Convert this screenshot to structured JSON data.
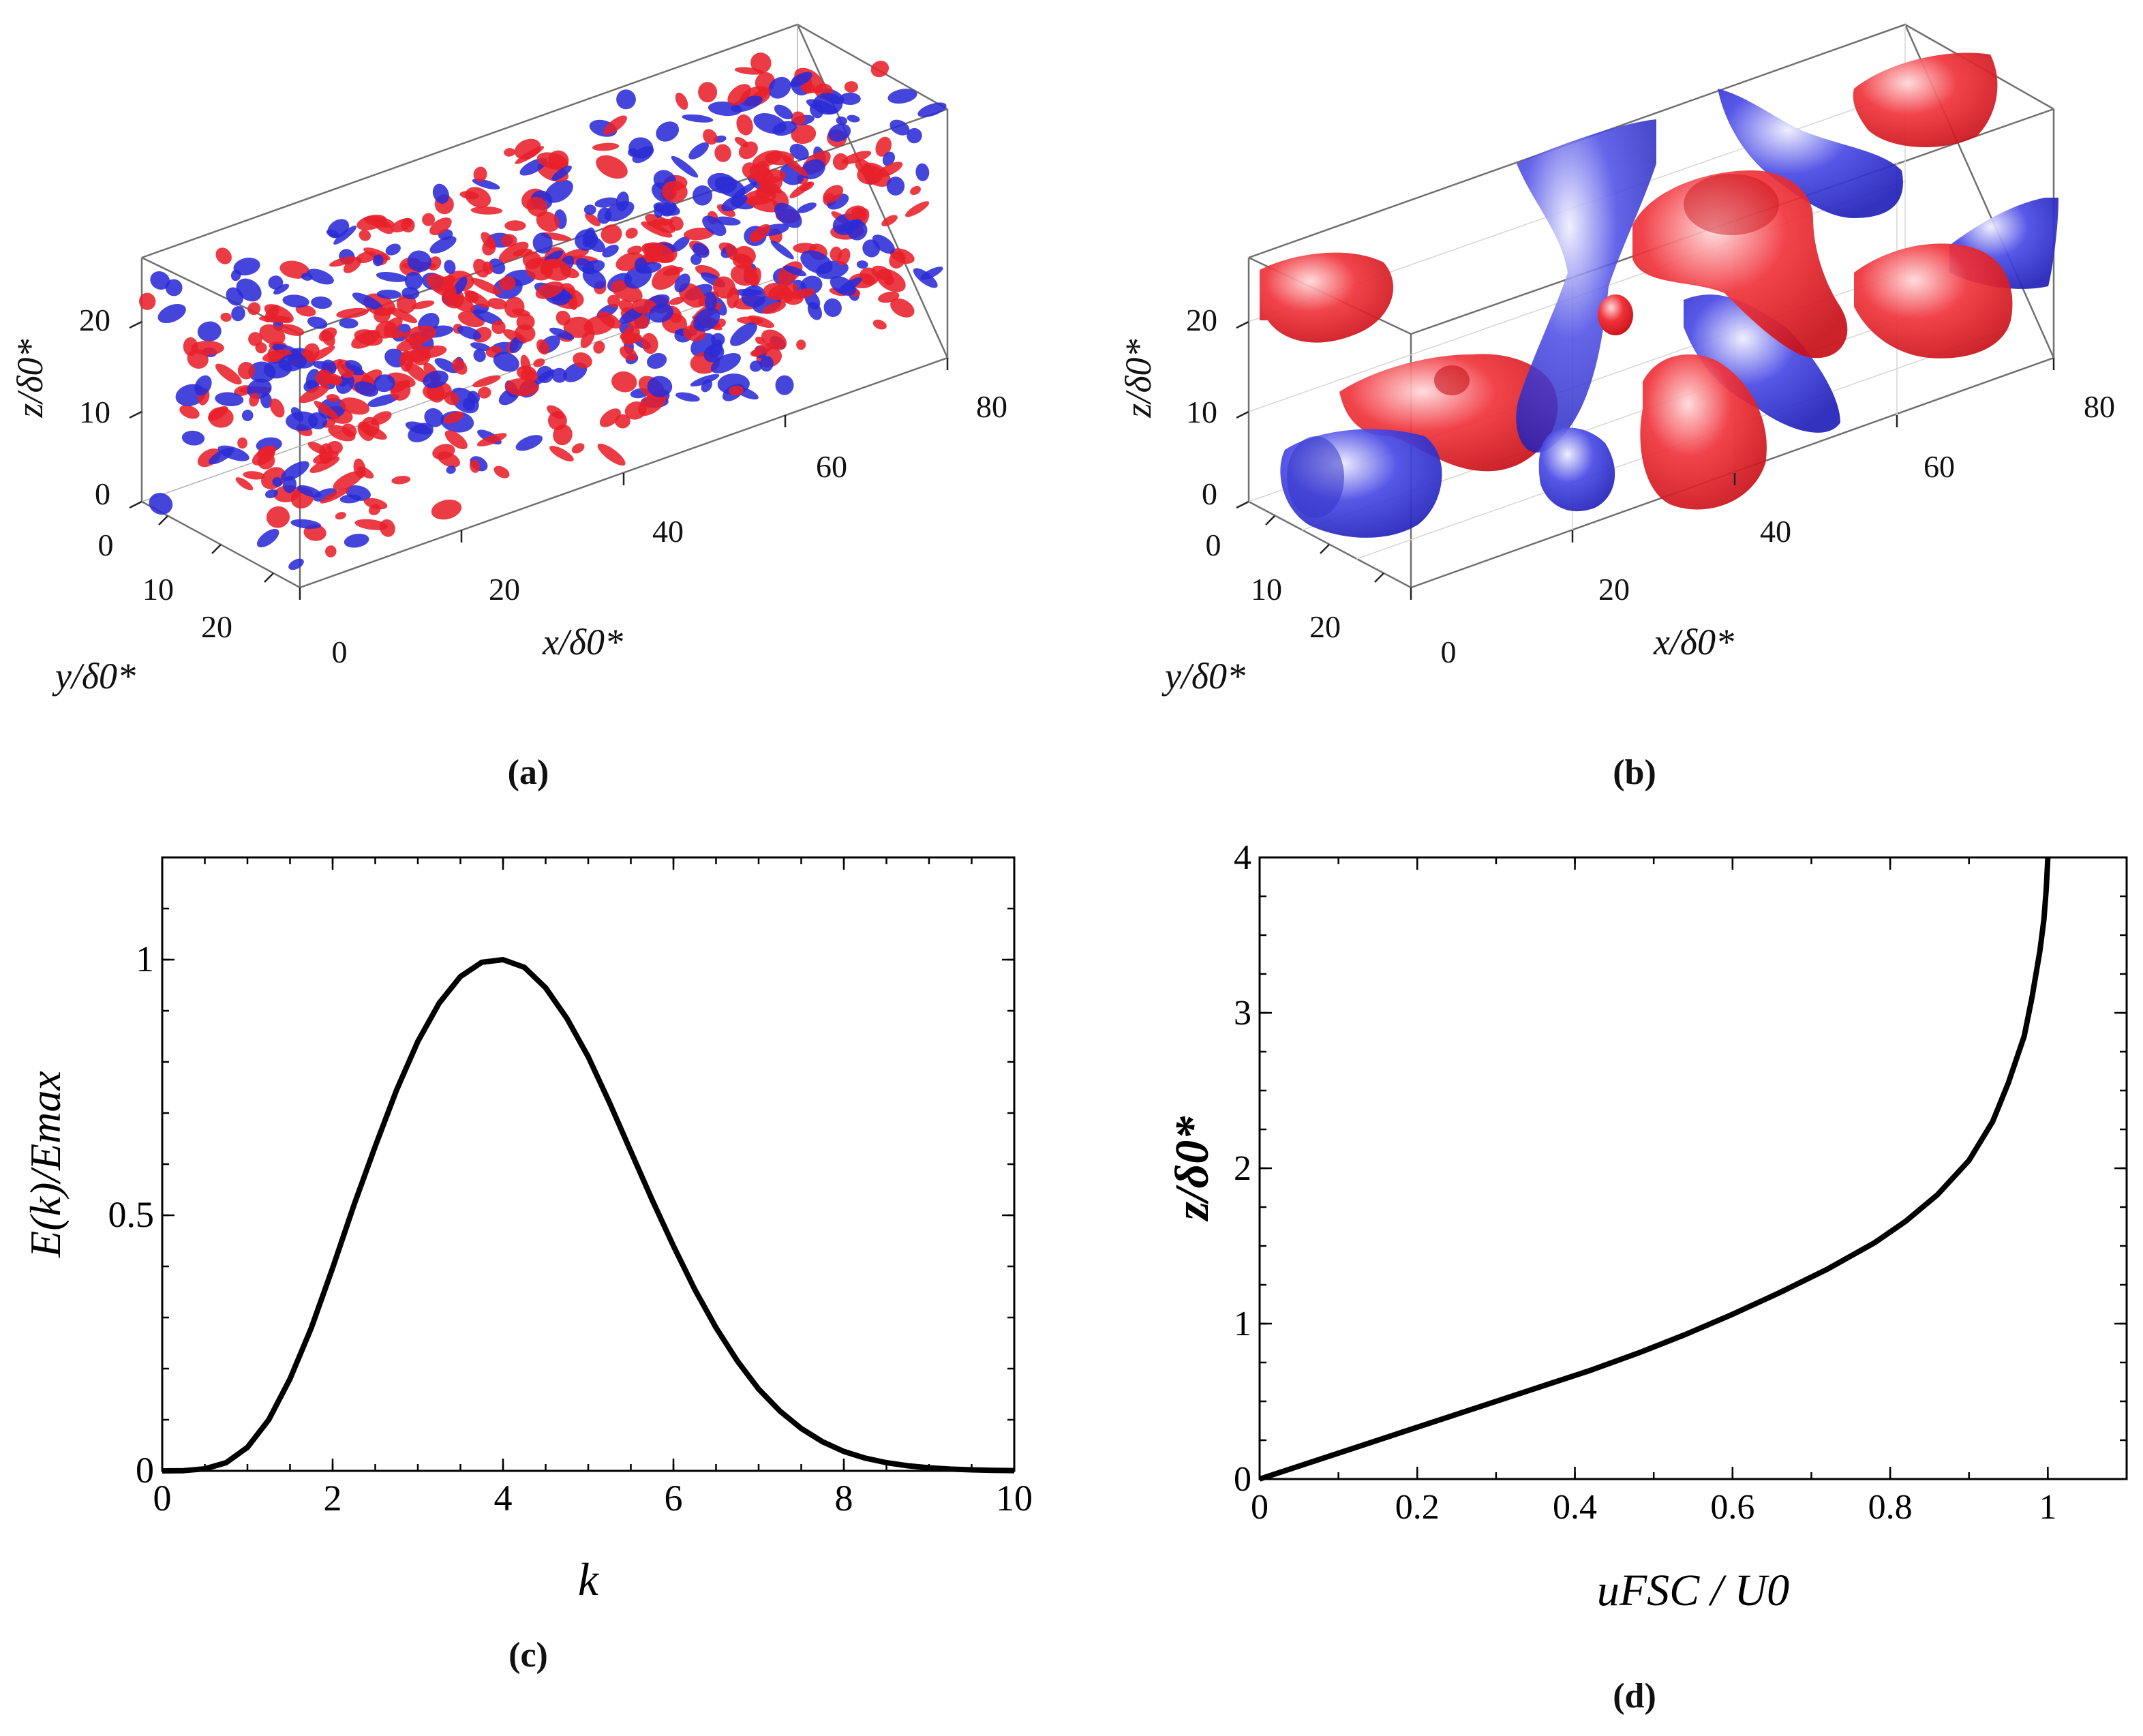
{
  "panels": {
    "a": {
      "caption": "(a)",
      "axes": {
        "x_label": "x/δ0*",
        "y_label": "y/δ0*",
        "z_label": "z/δ0*",
        "x_ticks": [
          "0",
          "20",
          "40",
          "60",
          "80"
        ],
        "y_ticks": [
          "0",
          "10",
          "20"
        ],
        "z_ticks": [
          "0",
          "10",
          "20"
        ]
      },
      "colors": {
        "positive": "#e8202a",
        "negative": "#2b2bd6"
      }
    },
    "b": {
      "caption": "(b)",
      "axes": {
        "x_label": "x/δ0*",
        "y_label": "y/δ0*",
        "z_label": "z/δ0*",
        "x_ticks": [
          "0",
          "20",
          "40",
          "60",
          "80"
        ],
        "y_ticks": [
          "0",
          "10",
          "20"
        ],
        "z_ticks": [
          "0",
          "10",
          "20"
        ]
      },
      "colors": {
        "positive": "#e8202a",
        "negative": "#2b2bd6"
      }
    },
    "c": {
      "caption": "(c)"
    },
    "d": {
      "caption": "(d)"
    }
  },
  "chart_data": [
    {
      "id": "c",
      "type": "line",
      "xlabel": "k",
      "ylabel": "E(k)/Emax",
      "xlim": [
        0,
        10
      ],
      "ylim": [
        0,
        1.2
      ],
      "xticks": [
        0,
        2,
        4,
        6,
        8,
        10
      ],
      "yticks": [
        0,
        0.5,
        1
      ],
      "ytick_labels": [
        "0",
        "0.5",
        "1"
      ],
      "series": [
        {
          "name": "E(k)/Emax",
          "x": [
            0,
            0.25,
            0.5,
            0.75,
            1,
            1.25,
            1.5,
            1.75,
            2,
            2.25,
            2.5,
            2.75,
            3,
            3.25,
            3.5,
            3.75,
            4,
            4.25,
            4.5,
            4.75,
            5,
            5.25,
            5.5,
            5.75,
            6,
            6.25,
            6.5,
            6.75,
            7,
            7.25,
            7.5,
            7.75,
            8,
            8.25,
            8.5,
            8.75,
            9,
            9.25,
            9.5,
            9.75,
            10
          ],
          "y": [
            0,
            0.0004,
            0.004,
            0.016,
            0.046,
            0.1,
            0.18,
            0.28,
            0.397,
            0.52,
            0.635,
            0.745,
            0.84,
            0.915,
            0.967,
            0.995,
            1.0,
            0.985,
            0.945,
            0.885,
            0.81,
            0.72,
            0.625,
            0.53,
            0.44,
            0.355,
            0.28,
            0.215,
            0.16,
            0.117,
            0.083,
            0.057,
            0.038,
            0.025,
            0.016,
            0.01,
            0.006,
            0.0035,
            0.002,
            0.001,
            0.0006
          ]
        }
      ]
    },
    {
      "id": "d",
      "type": "line",
      "xlabel": "uFSC / U0",
      "ylabel": "z/δ0*",
      "xlim": [
        0,
        1.1
      ],
      "ylim": [
        0,
        4
      ],
      "xticks": [
        0,
        0.2,
        0.4,
        0.6,
        0.8,
        1
      ],
      "xtick_labels": [
        "0",
        "0.2",
        "0.4",
        "0.6",
        "0.8",
        "1"
      ],
      "yticks": [
        0,
        1,
        2,
        3,
        4
      ],
      "series": [
        {
          "name": "uFSC/U0",
          "x": [
            0,
            0.06,
            0.12,
            0.18,
            0.24,
            0.3,
            0.36,
            0.42,
            0.48,
            0.54,
            0.6,
            0.66,
            0.72,
            0.78,
            0.82,
            0.86,
            0.9,
            0.93,
            0.95,
            0.97,
            0.98,
            0.99,
            0.995,
            0.998,
            1.0
          ],
          "y": [
            0,
            0.1,
            0.2,
            0.3,
            0.4,
            0.5,
            0.6,
            0.7,
            0.81,
            0.93,
            1.06,
            1.2,
            1.35,
            1.52,
            1.66,
            1.83,
            2.05,
            2.3,
            2.55,
            2.85,
            3.1,
            3.4,
            3.6,
            3.8,
            4.0
          ]
        }
      ]
    }
  ]
}
